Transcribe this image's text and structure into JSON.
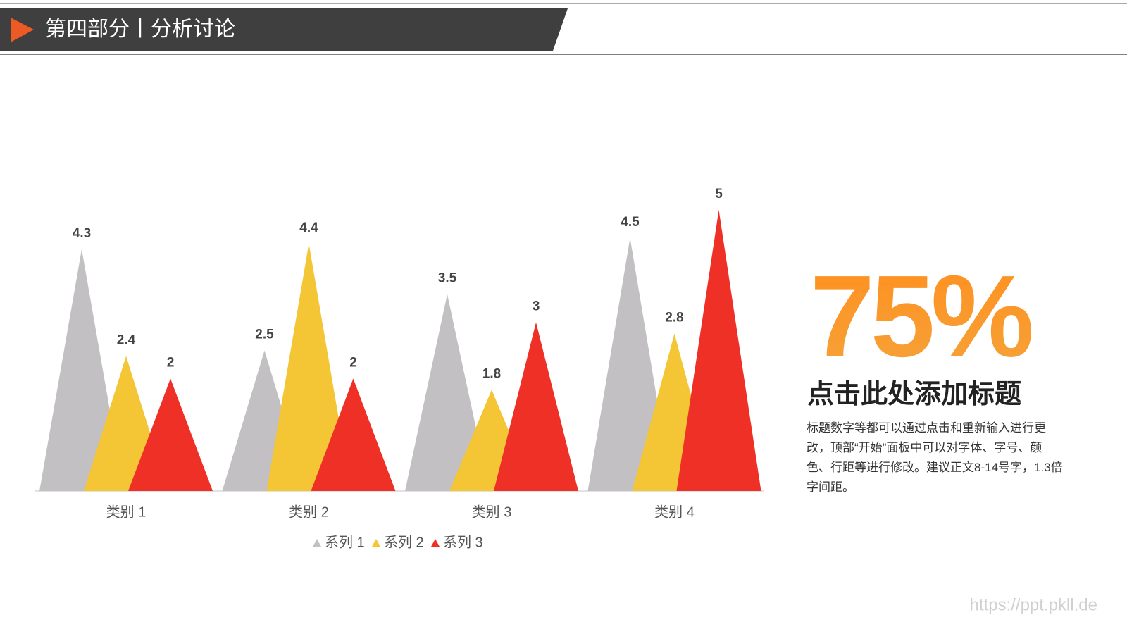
{
  "header": {
    "title": "第四部分丨分析讨论"
  },
  "chart_data": {
    "type": "triangle-bar",
    "categories": [
      "类别 1",
      "类别 2",
      "类别 3",
      "类别 4"
    ],
    "series": [
      {
        "name": "系列 1",
        "color": "#c2c0c2",
        "values": [
          4.3,
          2.5,
          3.5,
          4.5
        ]
      },
      {
        "name": "系列 2",
        "color": "#f4c534",
        "values": [
          2.4,
          4.4,
          1.8,
          2.8
        ]
      },
      {
        "name": "系列 3",
        "color": "#ee3027",
        "values": [
          2,
          2,
          3,
          5
        ]
      }
    ],
    "ylim": [
      0,
      5
    ],
    "grid": false,
    "legend": "bottom"
  },
  "side": {
    "big_number": "75%",
    "title": "点击此处添加标题",
    "body": "标题数字等都可以通过点击和重新输入进行更改，顶部“开始”面板中可以对字体、字号、颜色、行距等进行修改。建议正文8-14号字，1.3倍字间距。"
  },
  "watermark": "https://ppt.pkll.de"
}
